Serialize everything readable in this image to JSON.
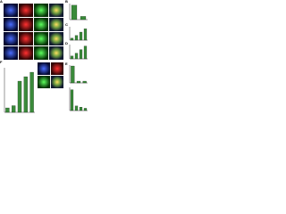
{
  "figure": {
    "panels": [
      {
        "label": "A"
      },
      {
        "label": "B"
      },
      {
        "label": "C"
      },
      {
        "label": "D"
      },
      {
        "label": "E"
      },
      {
        "label": "F"
      }
    ],
    "charts": [
      {
        "type": "bar",
        "color": "#3a8a3a",
        "ylim": [
          0,
          100
        ],
        "values": [
          90,
          20
        ]
      },
      {
        "type": "bar",
        "color": "#3a8a3a",
        "ylim": [
          0,
          100
        ],
        "values": [
          15,
          35,
          60,
          85
        ]
      },
      {
        "type": "bar",
        "color": "#3a8a3a",
        "ylim": [
          0,
          100
        ],
        "values": [
          20,
          40,
          65,
          90
        ]
      },
      {
        "type": "bar",
        "color": "#3a8a3a",
        "ylim": [
          0,
          100
        ],
        "values": [
          95,
          10,
          10
        ]
      },
      {
        "type": "bar",
        "color": "#3a8a3a",
        "ylim": [
          0,
          100
        ],
        "values": [
          90,
          20,
          15,
          10
        ]
      },
      {
        "type": "bar",
        "color": "#3a8a3a",
        "ylim": [
          0,
          100
        ],
        "values": [
          10,
          15,
          70,
          80,
          90
        ]
      }
    ]
  }
}
